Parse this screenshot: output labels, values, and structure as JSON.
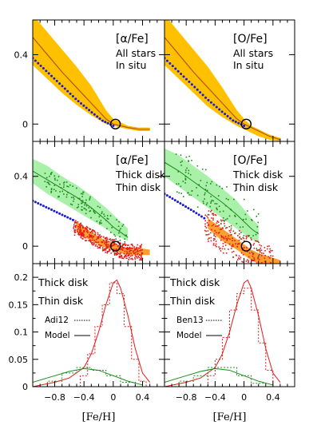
{
  "figure": {
    "xlabel": "[Fe/H]",
    "x_ticks": [
      "−0.8",
      "−0.4",
      "0",
      "0.4"
    ],
    "ticks_top_y": [
      "0.4",
      "0"
    ],
    "ticks_mid_y": [
      "0.4",
      "0"
    ],
    "ticks_bot_y": [
      "0.2",
      "0.15",
      "0.1",
      "0.05",
      "0"
    ]
  },
  "chart_data": [
    {
      "id": "top-left",
      "type": "area",
      "legend": [
        "[α/Fe]",
        "All stars",
        "In situ"
      ],
      "xlim": [
        -1.1,
        0.7
      ],
      "ylim": [
        -0.1,
        0.6
      ],
      "band_x": [
        -1.1,
        -0.9,
        -0.7,
        -0.5,
        -0.3,
        -0.1,
        0.0,
        0.1,
        0.2,
        0.35,
        0.5
      ],
      "band_lo": [
        0.34,
        0.26,
        0.18,
        0.11,
        0.05,
        0.0,
        -0.01,
        -0.02,
        -0.03,
        -0.04,
        -0.04
      ],
      "band_hi": [
        0.63,
        0.53,
        0.43,
        0.33,
        0.22,
        0.08,
        0.03,
        0.01,
        -0.01,
        -0.02,
        -0.02
      ],
      "line_x": [
        -1.1,
        -0.9,
        -0.7,
        -0.5,
        -0.3,
        -0.1,
        0.0,
        0.1,
        0.2,
        0.35,
        0.5
      ],
      "line_y": [
        0.5,
        0.4,
        0.3,
        0.21,
        0.12,
        0.03,
        0.0,
        -0.01,
        -0.02,
        -0.03,
        -0.03
      ],
      "insitu_x": [
        -1.1,
        -0.9,
        -0.7,
        -0.5,
        -0.3,
        -0.15,
        0.0
      ],
      "insitu_y": [
        0.38,
        0.3,
        0.22,
        0.14,
        0.07,
        0.02,
        -0.01
      ],
      "circle": [
        0.03,
        0.0
      ],
      "colors": {
        "band": "#ffc000",
        "line": "#b3541e",
        "insitu": "#1a1adb"
      }
    },
    {
      "id": "top-right",
      "type": "area",
      "legend": [
        "[O/Fe]",
        "All stars",
        "In situ"
      ],
      "xlim": [
        -1.1,
        0.7
      ],
      "ylim": [
        -0.1,
        0.6
      ],
      "band_x": [
        -1.1,
        -0.9,
        -0.7,
        -0.5,
        -0.3,
        -0.1,
        0.0,
        0.1,
        0.2,
        0.35,
        0.5
      ],
      "band_lo": [
        0.34,
        0.26,
        0.18,
        0.1,
        0.04,
        -0.01,
        -0.03,
        -0.05,
        -0.07,
        -0.09,
        -0.1
      ],
      "band_hi": [
        0.63,
        0.53,
        0.43,
        0.33,
        0.21,
        0.08,
        0.03,
        -0.01,
        -0.03,
        -0.06,
        -0.08
      ],
      "line_x": [
        -1.1,
        -0.9,
        -0.7,
        -0.5,
        -0.3,
        -0.1,
        0.0,
        0.1,
        0.2,
        0.35,
        0.5
      ],
      "line_y": [
        0.5,
        0.4,
        0.3,
        0.21,
        0.12,
        0.03,
        0.0,
        -0.02,
        -0.04,
        -0.07,
        -0.09
      ],
      "insitu_x": [
        -1.1,
        -0.9,
        -0.7,
        -0.5,
        -0.3,
        -0.15,
        0.0
      ],
      "insitu_y": [
        0.38,
        0.3,
        0.22,
        0.14,
        0.07,
        0.02,
        -0.01
      ],
      "circle": [
        0.03,
        0.0
      ],
      "colors": {
        "band": "#ffc000",
        "line": "#b3541e",
        "insitu": "#1a1adb"
      }
    },
    {
      "id": "mid-left",
      "type": "scatter",
      "legend": [
        "[α/Fe]",
        "Thick disk",
        "Thin disk"
      ],
      "xlim": [
        -1.1,
        0.7
      ],
      "ylim": [
        -0.1,
        0.6
      ],
      "green_band_x": [
        -1.1,
        -0.9,
        -0.7,
        -0.5,
        -0.3,
        -0.1,
        0.0,
        0.1,
        0.2
      ],
      "green_band_lo": [
        0.36,
        0.3,
        0.25,
        0.2,
        0.15,
        0.1,
        0.07,
        0.05,
        0.03
      ],
      "green_band_hi": [
        0.5,
        0.46,
        0.4,
        0.35,
        0.29,
        0.22,
        0.18,
        0.14,
        0.1
      ],
      "green_line_y": [
        0.43,
        0.38,
        0.33,
        0.28,
        0.22,
        0.15,
        0.11,
        0.08,
        0.05
      ],
      "orange_band_x": [
        -0.5,
        -0.3,
        -0.1,
        0.0,
        0.1,
        0.2,
        0.35,
        0.5
      ],
      "orange_band_lo": [
        0.08,
        0.03,
        -0.01,
        -0.02,
        -0.04,
        -0.05,
        -0.05,
        -0.05
      ],
      "orange_band_hi": [
        0.14,
        0.08,
        0.03,
        0.02,
        0.0,
        -0.01,
        -0.01,
        -0.02
      ],
      "insitu_x": [
        -1.1,
        -0.9,
        -0.7,
        -0.55
      ],
      "insitu_y": [
        0.26,
        0.22,
        0.18,
        0.15
      ],
      "circle": [
        0.03,
        0.0
      ],
      "colors": {
        "green_band": "#a9f0a9",
        "green": "#1c8a1c",
        "red": "#e31a1a",
        "orange": "#ff9d2e",
        "insitu": "#1a1adb"
      }
    },
    {
      "id": "mid-right",
      "type": "scatter",
      "legend": [
        "[O/Fe]",
        "Thick disk",
        "Thin disk"
      ],
      "xlim": [
        -1.1,
        0.7
      ],
      "ylim": [
        -0.1,
        0.6
      ],
      "green_band_x": [
        -1.1,
        -0.9,
        -0.7,
        -0.5,
        -0.3,
        -0.1,
        0.0,
        0.1,
        0.2
      ],
      "green_band_lo": [
        0.4,
        0.34,
        0.28,
        0.22,
        0.16,
        0.1,
        0.07,
        0.04,
        0.02
      ],
      "green_band_hi": [
        0.56,
        0.52,
        0.46,
        0.4,
        0.33,
        0.26,
        0.21,
        0.16,
        0.12
      ],
      "green_line_y": [
        0.48,
        0.43,
        0.37,
        0.31,
        0.25,
        0.18,
        0.14,
        0.1,
        0.07
      ],
      "orange_band_x": [
        -0.5,
        -0.3,
        -0.1,
        0.0,
        0.1,
        0.2,
        0.35,
        0.5
      ],
      "orange_band_lo": [
        0.1,
        0.03,
        -0.02,
        -0.05,
        -0.08,
        -0.1,
        -0.12,
        -0.13
      ],
      "orange_band_hi": [
        0.16,
        0.1,
        0.04,
        0.01,
        -0.02,
        -0.04,
        -0.06,
        -0.08
      ],
      "insitu_x": [
        -1.1,
        -0.9,
        -0.7,
        -0.55
      ],
      "insitu_y": [
        0.3,
        0.25,
        0.2,
        0.16
      ],
      "circle": [
        0.03,
        0.0
      ],
      "colors": {
        "green_band": "#a9f0a9",
        "green": "#1c8a1c",
        "red": "#e31a1a",
        "orange": "#ff9d2e",
        "insitu": "#1a1adb"
      }
    },
    {
      "id": "bottom-left",
      "type": "line",
      "legend": [
        "Thick disk",
        "Thin disk",
        "Adi12",
        "Model"
      ],
      "xlim": [
        -1.1,
        0.7
      ],
      "ylim": [
        0,
        0.225
      ],
      "thin_model_x": [
        -1.1,
        -0.8,
        -0.6,
        -0.4,
        -0.3,
        -0.2,
        -0.1,
        0.0,
        0.05,
        0.1,
        0.2,
        0.3,
        0.4,
        0.5
      ],
      "thin_model_y": [
        0.0,
        0.008,
        0.016,
        0.035,
        0.06,
        0.1,
        0.15,
        0.19,
        0.195,
        0.18,
        0.13,
        0.07,
        0.025,
        0.008
      ],
      "thin_data_edges": [
        -0.45,
        -0.35,
        -0.25,
        -0.15,
        -0.05,
        0.05,
        0.15,
        0.25,
        0.35,
        0.45
      ],
      "thin_data_values": [
        0.02,
        0.06,
        0.11,
        0.15,
        0.19,
        0.17,
        0.11,
        0.05,
        0.01
      ],
      "thick_model_x": [
        -1.1,
        -0.8,
        -0.6,
        -0.4,
        -0.2,
        0.0,
        0.2,
        0.4
      ],
      "thick_model_y": [
        0.008,
        0.02,
        0.028,
        0.033,
        0.03,
        0.02,
        0.01,
        0.003
      ],
      "thick_data_edges": [
        -0.9,
        -0.7,
        -0.5,
        -0.3,
        -0.1,
        0.1,
        0.3
      ],
      "thick_data_values": [
        0.01,
        0.025,
        0.035,
        0.03,
        0.02,
        0.008
      ],
      "colors": {
        "thick": "#1c8a1c",
        "thin": "#e31a1a"
      }
    },
    {
      "id": "bottom-right",
      "type": "line",
      "legend": [
        "Thick disk",
        "Thin disk",
        "Ben13",
        "Model"
      ],
      "xlim": [
        -1.1,
        0.7
      ],
      "ylim": [
        0,
        0.225
      ],
      "thin_model_x": [
        -1.1,
        -0.8,
        -0.6,
        -0.4,
        -0.3,
        -0.2,
        -0.1,
        0.0,
        0.05,
        0.1,
        0.2,
        0.3,
        0.4,
        0.5
      ],
      "thin_model_y": [
        0.0,
        0.008,
        0.016,
        0.035,
        0.06,
        0.1,
        0.15,
        0.19,
        0.195,
        0.18,
        0.13,
        0.07,
        0.025,
        0.008
      ],
      "thin_data_edges": [
        -0.5,
        -0.4,
        -0.3,
        -0.2,
        -0.1,
        0.0,
        0.1,
        0.2,
        0.3,
        0.4
      ],
      "thin_data_values": [
        0.02,
        0.05,
        0.09,
        0.14,
        0.17,
        0.18,
        0.14,
        0.08,
        0.03
      ],
      "thick_model_x": [
        -1.1,
        -0.8,
        -0.6,
        -0.4,
        -0.2,
        0.0,
        0.2,
        0.4
      ],
      "thick_model_y": [
        0.008,
        0.02,
        0.028,
        0.033,
        0.03,
        0.02,
        0.01,
        0.003
      ],
      "thick_data_edges": [
        -0.9,
        -0.7,
        -0.5,
        -0.3,
        -0.1,
        0.1,
        0.3
      ],
      "thick_data_values": [
        0.01,
        0.02,
        0.035,
        0.035,
        0.02,
        0.006
      ],
      "colors": {
        "thick": "#1c8a1c",
        "thin": "#e31a1a"
      }
    }
  ]
}
